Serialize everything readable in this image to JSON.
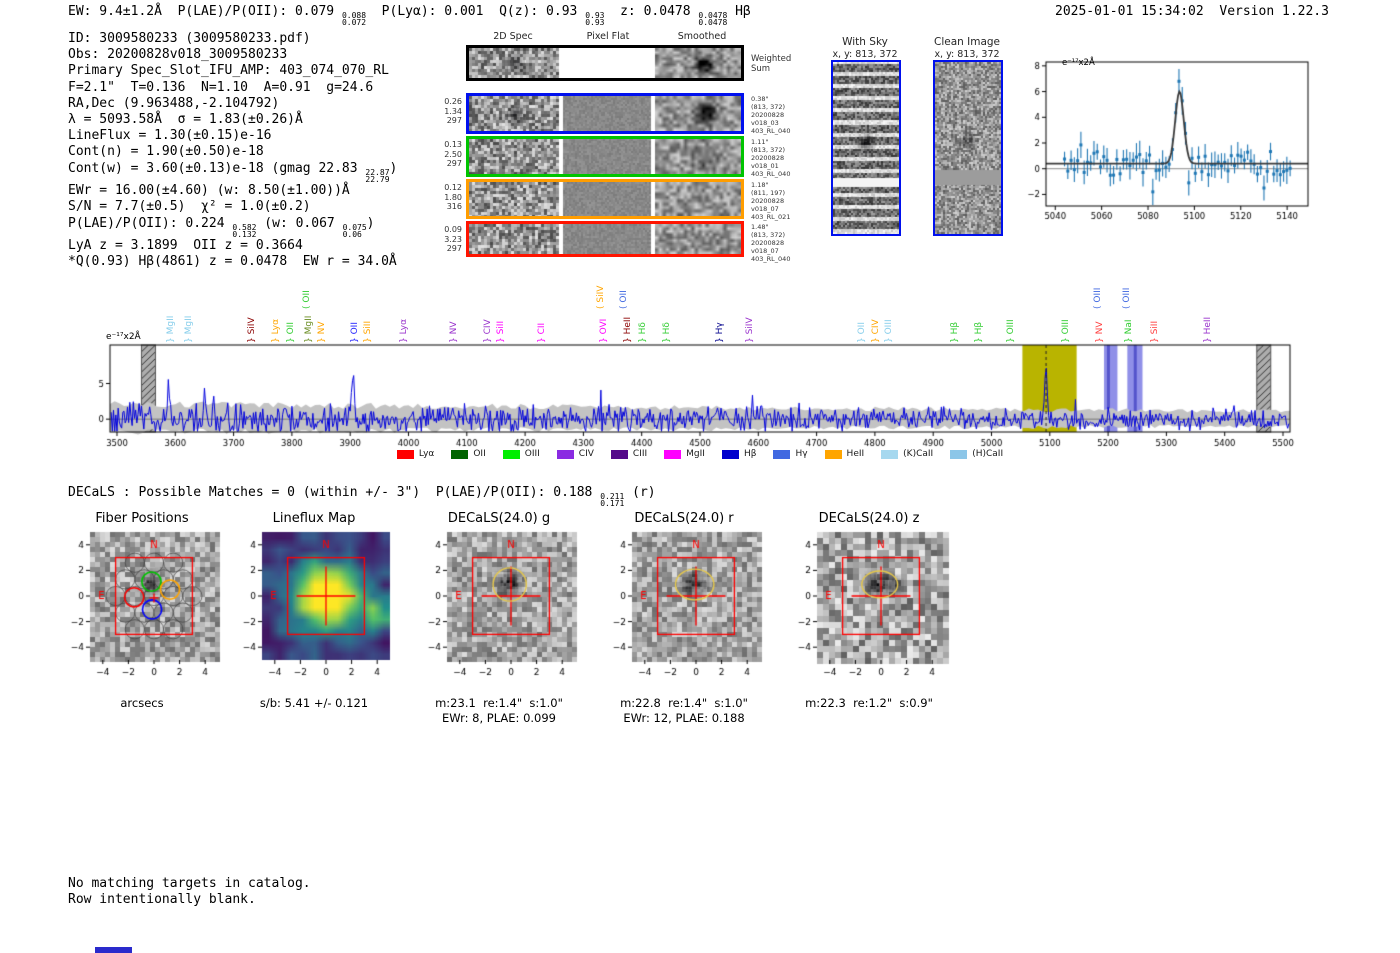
{
  "header": {
    "segments": [
      {
        "t": "EW: 9.4±1.2Å  P(LAE)/P(OII): 0.079 "
      },
      {
        "hi": "0.088",
        "lo": "0.072"
      },
      {
        "t": "  P(Lyα): 0.001  Q(z): 0.93 "
      },
      {
        "hi": "0.93",
        "lo": "0.93"
      },
      {
        "t": "  z: 0.0478 "
      },
      {
        "hi": "0.0478",
        "lo": "0.0478"
      },
      {
        "t": " Hβ"
      }
    ],
    "timestamp": "2025-01-01 15:34:02",
    "version": "Version 1.22.3"
  },
  "info_lines": [
    [
      {
        "t": "ID: 3009580233 (3009580233.pdf)"
      }
    ],
    [
      {
        "t": "Obs: 20200828v018_3009580233"
      }
    ],
    [
      {
        "t": "Primary Spec_Slot_IFU_AMP: 403_074_070_RL"
      }
    ],
    [
      {
        "t": "F=2.1\"  T=0.136  N=1.10  A=0.91  g=24.6"
      }
    ],
    [
      {
        "t": "RA,Dec (9.963488,-2.104792)"
      }
    ],
    [
      {
        "t": "λ = 5093.58Å  σ = 1.83(±0.26)Å"
      }
    ],
    [
      {
        "t": "LineFlux = 1.30(±0.15)e-16"
      }
    ],
    [
      {
        "t": "Cont(n) = 1.90(±0.50)e-18"
      }
    ],
    [
      {
        "t": "Cont(w) = 3.60(±0.13)e-18 (gmag 22.83 "
      },
      {
        "hi": "22.87",
        "lo": "22.79"
      },
      {
        "t": ")"
      }
    ],
    [
      {
        "t": "EWr = 16.00(±4.60) (w: 8.50(±1.00))Å"
      }
    ],
    [
      {
        "t": "S/N = 7.7(±0.5)  χ² = 1.0(±0.2)"
      }
    ],
    [
      {
        "t": "P(LAE)/P(OII): 0.224 "
      },
      {
        "hi": "0.582",
        "lo": "0.132"
      },
      {
        "t": " (w: 0.067 "
      },
      {
        "hi": "0.075",
        "lo": "0.06"
      },
      {
        "t": ")"
      }
    ],
    [
      {
        "t": "LyA z = 3.1899  OII z = 0.3664"
      }
    ],
    [
      {
        "t": "*Q(0.93) Hβ(4861) z = 0.0478  EW r = 34.0Å"
      }
    ]
  ],
  "spec2d": {
    "col_titles": [
      "2D Spec",
      "Pixel Flat",
      "Smoothed"
    ],
    "rows": [
      {
        "border": "#000000",
        "left": [],
        "right": [
          "Weighted",
          "Sum"
        ],
        "weighted": true
      },
      {
        "border": "#0010ee",
        "left": [
          "0.26",
          "1.34",
          "297"
        ],
        "right": [
          "0.38\"",
          "(813, 372)",
          "20200828",
          "v018_03",
          "403_RL_040"
        ]
      },
      {
        "border": "#00c400",
        "left": [
          "0.13",
          "2.50",
          "297"
        ],
        "right": [
          "1.11\"",
          "(813, 372)",
          "20200828",
          "v018_01",
          "403_RL_040"
        ]
      },
      {
        "border": "#ff9d00",
        "left": [
          "0.12",
          "1.80",
          "316"
        ],
        "right": [
          "1.18\"",
          "(811, 197)",
          "20200828",
          "v018_07",
          "403_RL_021"
        ]
      },
      {
        "border": "#ff1400",
        "left": [
          "0.09",
          "3.23",
          "297"
        ],
        "right": [
          "1.48\"",
          "(813, 372)",
          "20200828",
          "v018_07",
          "403_RL_040"
        ]
      }
    ]
  },
  "sky_panels": {
    "with_sky": {
      "title": "With Sky",
      "coords": "x, y: 813, 372"
    },
    "clean": {
      "title": "Clean Image",
      "coords": "x, y: 813, 372"
    }
  },
  "decals_line": [
    {
      "t": "DECaLS : Possible Matches = 0 (within +/- 3\")  P(LAE)/P(OII): 0.188 "
    },
    {
      "hi": "0.211",
      "lo": "0.171"
    },
    {
      "t": " (r)"
    }
  ],
  "footer_lines": [
    "No matching targets in catalog.",
    "Row intentionally blank."
  ],
  "chart_data": [
    {
      "id": "line_fit_inset",
      "type": "scatter",
      "unit_label": "e⁻¹⁷x2Å",
      "xlim": [
        5036,
        5149
      ],
      "ylim": [
        -2.9,
        8.3
      ],
      "x_ticks": [
        5040,
        5060,
        5080,
        5100,
        5120,
        5140
      ],
      "y_ticks": [
        -2,
        0,
        2,
        4,
        6,
        8
      ],
      "fit": {
        "center": 5093.58,
        "sigma": 1.83,
        "peak": 6.0,
        "continuum": 0.4
      },
      "marker_color": "#1f77b4",
      "fit_color": "#3a3a3a",
      "description": "Blue error-bar spectrum points with black Gaussian fit peaking near 6 at 5093.58 Å over continuum ~0.4"
    },
    {
      "id": "full_spectrum",
      "type": "line",
      "unit_label": "e⁻¹⁷x2Å",
      "xlim": [
        3488,
        5512
      ],
      "ylim": [
        -1.8,
        10.4
      ],
      "x_ticks": [
        3500,
        3600,
        3700,
        3800,
        3900,
        4000,
        4100,
        4200,
        4300,
        4400,
        4500,
        4600,
        4700,
        4800,
        4900,
        5000,
        5100,
        5200,
        5300,
        5400,
        5500
      ],
      "y_ticks": [
        0,
        5
      ],
      "line_color": "#0000dd",
      "error_band_color": "#c3c3c3",
      "emission_line": {
        "wavelength": 5093.58,
        "height": 7.2,
        "marker": "dashed-vertical"
      },
      "highlight_bands": [
        {
          "x0": 5053,
          "x1": 5146,
          "color": "#b9b400"
        },
        {
          "x0": 5193,
          "x1": 5216,
          "color": "#9090e8"
        },
        {
          "x0": 5233,
          "x1": 5259,
          "color": "#9090e8"
        }
      ],
      "masked_bands": [
        {
          "x0": 3542,
          "x1": 3566
        },
        {
          "x0": 5455,
          "x1": 5479
        }
      ],
      "line_labels": [
        {
          "wl": 3606,
          "name": "MgII",
          "color": "#87ceeb",
          "tall": false
        },
        {
          "wl": 3638,
          "name": "MgII",
          "color": "#87ceeb",
          "tall": false
        },
        {
          "wl": 3745,
          "name": "SiIV",
          "color": "#8b0000",
          "tall": false
        },
        {
          "wl": 3787,
          "name": "Lyα",
          "color": "#ffa500",
          "tall": false
        },
        {
          "wl": 3812,
          "name": "OII",
          "color": "#32cd32",
          "tall": false
        },
        {
          "wl": 3840,
          "name": "OII",
          "color": "#32cd32",
          "tall": true
        },
        {
          "wl": 3843,
          "name": "MgII",
          "color": "#6b8e23",
          "tall": false
        },
        {
          "wl": 3866,
          "name": "NV",
          "color": "#ffa500",
          "tall": false
        },
        {
          "wl": 3922,
          "name": "OII",
          "color": "#2222ff",
          "tall": false
        },
        {
          "wl": 3944,
          "name": "SiII",
          "color": "#ffa500",
          "tall": false
        },
        {
          "wl": 4006,
          "name": "Lyα",
          "color": "#9932cc",
          "tall": false
        },
        {
          "wl": 4091,
          "name": "NV",
          "color": "#9932cc",
          "tall": false
        },
        {
          "wl": 4150,
          "name": "CIV",
          "color": "#9932cc",
          "tall": false
        },
        {
          "wl": 4172,
          "name": "SiII",
          "color": "#ff00ff",
          "tall": false
        },
        {
          "wl": 4243,
          "name": "CII",
          "color": "#ff00ff",
          "tall": false
        },
        {
          "wl": 4344,
          "name": "SiIV",
          "color": "#ffa500",
          "tall": true
        },
        {
          "wl": 4349,
          "name": "OVI",
          "color": "#ff00ff",
          "tall": false
        },
        {
          "wl": 4383,
          "name": "OII",
          "color": "#4169e1",
          "tall": true
        },
        {
          "wl": 4390,
          "name": "HeII",
          "color": "#8b0000",
          "tall": false
        },
        {
          "wl": 4416,
          "name": "Hδ",
          "color": "#32cd32",
          "tall": false
        },
        {
          "wl": 4457,
          "name": "Hδ",
          "color": "#32cd32",
          "tall": false
        },
        {
          "wl": 4548,
          "name": "Hγ",
          "color": "#00008b",
          "tall": false
        },
        {
          "wl": 4599,
          "name": "SiIV",
          "color": "#9932cc",
          "tall": false
        },
        {
          "wl": 4791,
          "name": "OII",
          "color": "#87ceeb",
          "tall": false
        },
        {
          "wl": 4816,
          "name": "CIV",
          "color": "#ffa500",
          "tall": false
        },
        {
          "wl": 4838,
          "name": "OIII",
          "color": "#87ceeb",
          "tall": false
        },
        {
          "wl": 4951,
          "name": "Hβ",
          "color": "#32cd32",
          "tall": false
        },
        {
          "wl": 4993,
          "name": "Hβ",
          "color": "#32cd32",
          "tall": false
        },
        {
          "wl": 5048,
          "name": "OIII",
          "color": "#32cd32",
          "tall": false
        },
        {
          "wl": 5142,
          "name": "OIII",
          "color": "#32cd32",
          "tall": false
        },
        {
          "wl": 5196,
          "name": "OIII",
          "color": "#4169e1",
          "tall": true
        },
        {
          "wl": 5200,
          "name": "NV",
          "color": "#ff4040",
          "tall": false
        },
        {
          "wl": 5246,
          "name": "OIII",
          "color": "#4169e1",
          "tall": true
        },
        {
          "wl": 5249,
          "name": "NaI",
          "color": "#32cd32",
          "tall": false
        },
        {
          "wl": 5294,
          "name": "SiII",
          "color": "#ff4040",
          "tall": false
        },
        {
          "wl": 5385,
          "name": "HeII",
          "color": "#9932cc",
          "tall": false
        }
      ],
      "legend": [
        {
          "name": "Lyα",
          "color": "#ff0000"
        },
        {
          "name": "OII",
          "color": "#006400"
        },
        {
          "name": "OIII",
          "color": "#00ee00"
        },
        {
          "name": "CIV",
          "color": "#8a2be2"
        },
        {
          "name": "CIII",
          "color": "#550a8a"
        },
        {
          "name": "MgII",
          "color": "#ff00ff"
        },
        {
          "name": "Hβ",
          "color": "#0000cd"
        },
        {
          "name": "Hγ",
          "color": "#4169e1"
        },
        {
          "name": "HeII",
          "color": "#ffa500"
        },
        {
          "name": "(K)CaII",
          "color": "#a6d8ef"
        },
        {
          "name": "(H)CaII",
          "color": "#8cc6e8"
        }
      ],
      "description": "Noisy blue spectrum about continuum 0 with detected emission line at 5093.58 Å; yellow band marks detection, blue bands mark OIII 4959/5007 at z=0.0478, hatched gray bands are masked regions"
    }
  ],
  "cutouts": [
    {
      "title": "Fiber Positions",
      "captions": [
        "arcsecs"
      ],
      "ticks": [
        -4,
        -2,
        0,
        2,
        4
      ],
      "compass_n": "N",
      "compass_e": "E",
      "style": "fibers"
    },
    {
      "title": "Lineflux Map",
      "captions": [
        "s/b: 5.41 +/- 0.121"
      ],
      "ticks": [
        -4,
        -2,
        0,
        2,
        4
      ],
      "compass_n": "N",
      "compass_e": "E",
      "style": "viridis"
    },
    {
      "title": "DECaLS(24.0) g",
      "captions": [
        "m:23.1  re:1.4\"  s:1.0\"",
        "EWr: 8, PLAE: 0.099"
      ],
      "ticks": [
        -4,
        -2,
        0,
        2,
        4
      ],
      "compass_n": "N",
      "compass_e": "E",
      "style": "gray"
    },
    {
      "title": "DECaLS(24.0) r",
      "captions": [
        "m:22.8  re:1.4\"  s:1.0\"",
        "EWr: 12, PLAE: 0.188"
      ],
      "ticks": [
        -4,
        -2,
        0,
        2,
        4
      ],
      "compass_n": "N",
      "compass_e": "E",
      "style": "gray"
    },
    {
      "title": "DECaLS(24.0) z",
      "captions": [
        "m:22.3  re:1.2\"  s:0.9\""
      ],
      "ticks": [
        -4,
        -2,
        0,
        2,
        4
      ],
      "compass_n": "N",
      "compass_e": "E",
      "style": "grayz"
    }
  ]
}
